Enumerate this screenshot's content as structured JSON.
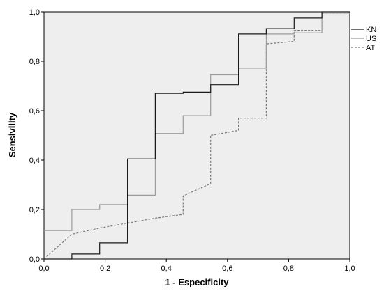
{
  "chart_data": {
    "type": "line",
    "xlabel": "1 - Especificity",
    "ylabel": "Sensivility",
    "xlim": [
      0,
      1
    ],
    "ylim": [
      0,
      1
    ],
    "xticks": [
      "0,0",
      "0,2",
      "0,4",
      "0,6",
      "0,8",
      "1,0"
    ],
    "yticks": [
      "0,0",
      "0,2",
      "0,4",
      "0,6",
      "0,8",
      "1,0"
    ],
    "legend_position": "right",
    "background_color": "#eeeeee",
    "series": [
      {
        "name": "KN",
        "color": "#1a1a1a",
        "style": "solid",
        "x": [
          0,
          0.091,
          0.091,
          0.182,
          0.182,
          0.273,
          0.273,
          0.364,
          0.364,
          0.455,
          0.455,
          0.545,
          0.545,
          0.636,
          0.636,
          0.727,
          0.727,
          0.818,
          0.818,
          0.909,
          0.909,
          1.0
        ],
        "y": [
          0,
          0,
          0.02,
          0.02,
          0.065,
          0.065,
          0.405,
          0.405,
          0.67,
          0.67,
          0.675,
          0.675,
          0.705,
          0.705,
          0.91,
          0.91,
          0.932,
          0.932,
          0.975,
          0.975,
          1.0,
          1.0
        ]
      },
      {
        "name": "US",
        "color": "#9c9c9c",
        "style": "solid",
        "x": [
          0,
          0.091,
          0.091,
          0.182,
          0.182,
          0.273,
          0.273,
          0.364,
          0.364,
          0.455,
          0.455,
          0.545,
          0.545,
          0.636,
          0.636,
          0.727,
          0.727,
          0.818,
          0.818,
          0.909,
          0.909,
          1.0
        ],
        "y": [
          0.115,
          0.115,
          0.2,
          0.2,
          0.22,
          0.22,
          0.258,
          0.258,
          0.508,
          0.508,
          0.58,
          0.58,
          0.745,
          0.745,
          0.772,
          0.772,
          0.91,
          0.91,
          0.915,
          0.915,
          0.995,
          0.995
        ]
      },
      {
        "name": "AT",
        "color": "#7a7a7a",
        "style": "dashed",
        "x": [
          0,
          0.091,
          0.182,
          0.273,
          0.364,
          0.455,
          0.455,
          0.545,
          0.545,
          0.636,
          0.636,
          0.727,
          0.727,
          0.818,
          0.818,
          0.909,
          0.909,
          1.0
        ],
        "y": [
          0,
          0.1,
          0.125,
          0.145,
          0.165,
          0.18,
          0.255,
          0.305,
          0.5,
          0.52,
          0.57,
          0.57,
          0.87,
          0.88,
          0.925,
          0.925,
          0.995,
          0.995
        ]
      }
    ]
  }
}
